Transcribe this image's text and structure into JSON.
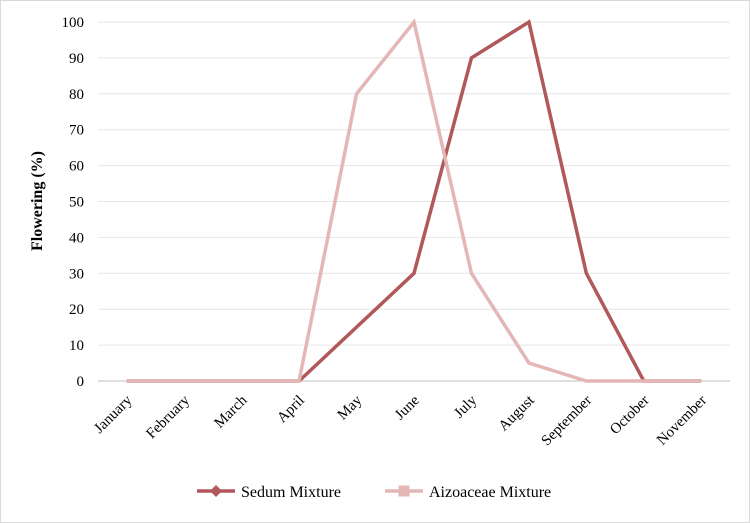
{
  "chart_data": {
    "type": "line",
    "title": "",
    "xlabel": "",
    "ylabel": "Flowering  (%)",
    "ylim": [
      0,
      100
    ],
    "yticks": [
      0,
      10,
      20,
      30,
      40,
      50,
      60,
      70,
      80,
      90,
      100
    ],
    "grid": true,
    "legend_position": "bottom",
    "categories": [
      "January",
      "February",
      "March",
      "April",
      "May",
      "June",
      "July",
      "August",
      "September",
      "October",
      "November"
    ],
    "series": [
      {
        "name": "Sedum Mixture",
        "color": "#b0585a",
        "marker": "diamond",
        "values": [
          0,
          0,
          0,
          0,
          15,
          30,
          90,
          100,
          30,
          0,
          0
        ]
      },
      {
        "name": "Aizoaceae Mixture",
        "color": "#e4b6b6",
        "marker": "square",
        "values": [
          0,
          0,
          0,
          0,
          80,
          100,
          30,
          5,
          0,
          0,
          0
        ]
      }
    ]
  }
}
